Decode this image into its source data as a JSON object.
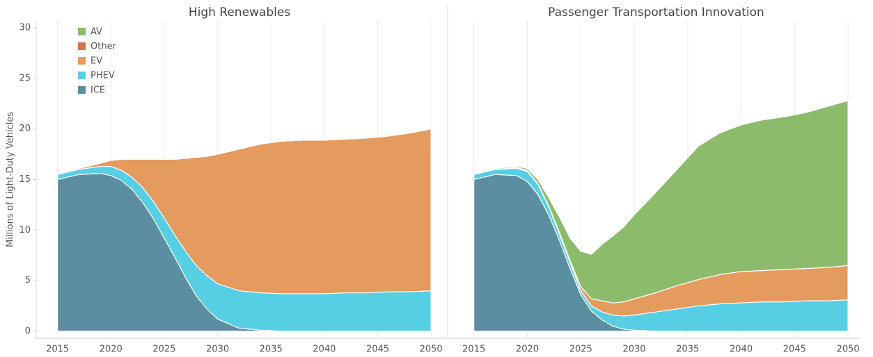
{
  "chart_data": [
    {
      "type": "stacked_area",
      "title": "High Renewables",
      "y_label": "Millions of Light-Duty Vehicles",
      "legend": "upper left",
      "x": [
        2015,
        2017,
        2019,
        2020,
        2021,
        2022,
        2023,
        2024,
        2025,
        2026,
        2027,
        2028,
        2029,
        2030,
        2032,
        2034,
        2036,
        2038,
        2040,
        2042,
        2044,
        2046,
        2048,
        2050
      ],
      "series": [
        {
          "name": "ICE",
          "color": "#5b8ea0",
          "values": [
            15.0,
            15.5,
            15.6,
            15.4,
            14.9,
            14.0,
            12.7,
            11.1,
            9.2,
            7.3,
            5.3,
            3.5,
            2.2,
            1.2,
            0.3,
            0.1,
            0,
            0,
            0,
            0,
            0,
            0,
            0,
            0
          ]
        },
        {
          "name": "PHEV",
          "color": "#56cfe5",
          "values": [
            0.5,
            0.5,
            0.7,
            0.9,
            1.0,
            1.2,
            1.5,
            1.7,
            2.0,
            2.2,
            2.6,
            3.0,
            3.3,
            3.5,
            3.7,
            3.7,
            3.7,
            3.7,
            3.7,
            3.8,
            3.8,
            3.9,
            3.9,
            4.0
          ]
        },
        {
          "name": "EV",
          "color": "#e59a5e",
          "values": [
            0.1,
            0.1,
            0.3,
            0.6,
            1.1,
            1.8,
            2.8,
            4.2,
            5.8,
            7.5,
            9.2,
            10.7,
            11.8,
            12.8,
            14.0,
            14.7,
            15.1,
            15.2,
            15.2,
            15.2,
            15.3,
            15.4,
            15.7,
            16.0
          ]
        },
        {
          "name": "Other",
          "color": "#d5744a",
          "values": [
            0,
            0,
            0,
            0,
            0,
            0,
            0,
            0,
            0,
            0,
            0,
            0,
            0,
            0,
            0,
            0,
            0,
            0,
            0,
            0,
            0,
            0,
            0,
            0
          ]
        },
        {
          "name": "AV",
          "color": "#8cbb6b",
          "values": [
            0,
            0,
            0,
            0,
            0,
            0,
            0,
            0,
            0,
            0,
            0,
            0,
            0,
            0,
            0,
            0,
            0,
            0,
            0,
            0,
            0,
            0,
            0,
            0
          ]
        }
      ],
      "xlim": [
        2013,
        2051.1
      ],
      "xticks": [
        2015,
        2020,
        2025,
        2030,
        2035,
        2040,
        2045,
        2050
      ],
      "ylim": [
        -0.7,
        30.7
      ],
      "yticks": [
        0,
        5,
        10,
        15,
        20,
        25,
        30
      ],
      "grid": true
    },
    {
      "type": "stacked_area",
      "title": "Passenger Transportation Innovation",
      "x": [
        2015,
        2017,
        2019,
        2020,
        2021,
        2022,
        2023,
        2024,
        2025,
        2026,
        2027,
        2028,
        2029,
        2030,
        2032,
        2034,
        2036,
        2038,
        2040,
        2042,
        2044,
        2046,
        2048,
        2050
      ],
      "series": [
        {
          "name": "ICE",
          "color": "#5b8ea0",
          "values": [
            15.0,
            15.5,
            15.4,
            14.8,
            13.5,
            11.5,
            9.0,
            6.2,
            3.6,
            2.0,
            1.1,
            0.5,
            0.2,
            0.1,
            0,
            0,
            0,
            0,
            0,
            0,
            0,
            0,
            0,
            0
          ]
        },
        {
          "name": "PHEV",
          "color": "#56cfe5",
          "values": [
            0.5,
            0.5,
            0.7,
            1.0,
            1.0,
            0.8,
            0.6,
            0.6,
            0.4,
            0.5,
            0.8,
            1.1,
            1.3,
            1.5,
            1.9,
            2.2,
            2.5,
            2.7,
            2.8,
            2.9,
            2.9,
            3.0,
            3.0,
            3.1
          ]
        },
        {
          "name": "EV",
          "color": "#e59a5e",
          "values": [
            0,
            0,
            0.1,
            0.1,
            0.1,
            0.1,
            0.2,
            0.2,
            0.4,
            0.7,
            1.1,
            1.2,
            1.4,
            1.6,
            1.9,
            2.3,
            2.6,
            2.9,
            3.1,
            3.1,
            3.2,
            3.2,
            3.3,
            3.4
          ]
        },
        {
          "name": "Other",
          "color": "#d5744a",
          "values": [
            0,
            0,
            0,
            0,
            0,
            0,
            0,
            0,
            0,
            0,
            0,
            0,
            0,
            0,
            0,
            0,
            0,
            0,
            0,
            0,
            0,
            0,
            0,
            0
          ]
        },
        {
          "name": "AV",
          "color": "#8cbb6b",
          "values": [
            0,
            0.1,
            0.1,
            0.2,
            0.4,
            0.8,
            1.5,
            2.2,
            3.5,
            4.4,
            5.6,
            6.6,
            7.4,
            8.3,
            9.9,
            11.5,
            13.2,
            14.0,
            14.5,
            14.9,
            15.1,
            15.4,
            15.9,
            16.3
          ]
        }
      ],
      "xlim": [
        2013,
        2051.1
      ],
      "xticks": [
        2015,
        2020,
        2025,
        2030,
        2035,
        2040,
        2045,
        2050
      ],
      "ylim": [
        -0.7,
        30.7
      ],
      "grid": true
    }
  ]
}
